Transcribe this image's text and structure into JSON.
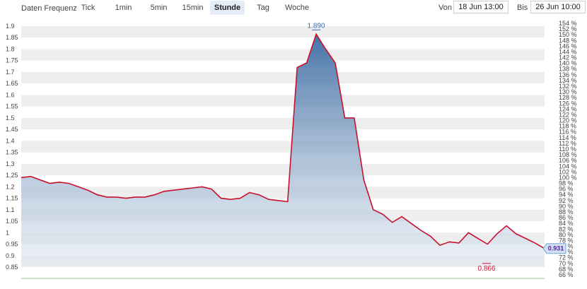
{
  "toolbar": {
    "frequency_label": "Daten Frequenz",
    "buttons": [
      {
        "label": "Tick",
        "active": false
      },
      {
        "label": "1min",
        "active": false
      },
      {
        "label": "5min",
        "active": false
      },
      {
        "label": "15min",
        "active": false
      },
      {
        "label": "Stunde",
        "active": true
      },
      {
        "label": "Tag",
        "active": false
      },
      {
        "label": "Woche",
        "active": false
      }
    ],
    "from_label": "Von",
    "from_value": "18 Jun 13:00",
    "to_label": "Bis",
    "to_value": "26 Jun 10:00"
  },
  "colors": {
    "line": "#c8102e",
    "area_top": "#3d6ca3",
    "area_bottom": "#e4ebf3",
    "band": "#eeeeee",
    "current_badge": "#cfe0f3",
    "high_label": "#3a6fb0",
    "low_label": "#c8102e"
  },
  "chart_data": {
    "type": "area",
    "y_left_ticks": [
      "1.9",
      "1.85",
      "1.8",
      "1.75",
      "1.7",
      "1.65",
      "1.6",
      "1.55",
      "1.5",
      "1.45",
      "1.4",
      "1.35",
      "1.3",
      "1.25",
      "1.2",
      "1.15",
      "1.1",
      "1.05",
      "1",
      "0.95",
      "0.9",
      "0.85"
    ],
    "y_right_ticks": [
      "154 %",
      "152 %",
      "150 %",
      "148 %",
      "146 %",
      "144 %",
      "142 %",
      "140 %",
      "138 %",
      "136 %",
      "134 %",
      "132 %",
      "130 %",
      "128 %",
      "126 %",
      "124 %",
      "122 %",
      "120 %",
      "118 %",
      "116 %",
      "114 %",
      "112 %",
      "110 %",
      "108 %",
      "106 %",
      "104 %",
      "102 %",
      "100 %",
      "98 %",
      "96 %",
      "94 %",
      "92 %",
      "90 %",
      "88 %",
      "86 %",
      "84 %",
      "82 %",
      "80 %",
      "78 %",
      "76 %",
      "74 %",
      "72 %",
      "70 %",
      "68 %",
      "66 %"
    ],
    "ylim": [
      0.85,
      1.9
    ],
    "values": [
      1.24,
      1.245,
      1.23,
      1.215,
      1.22,
      1.215,
      1.2,
      1.185,
      1.165,
      1.155,
      1.155,
      1.15,
      1.155,
      1.155,
      1.165,
      1.18,
      1.185,
      1.19,
      1.195,
      1.2,
      1.19,
      1.15,
      1.145,
      1.15,
      1.175,
      1.165,
      1.145,
      1.14,
      1.135,
      1.72,
      1.74,
      1.865,
      1.8,
      1.74,
      1.5,
      1.5,
      1.23,
      1.1,
      1.08,
      1.045,
      1.07,
      1.04,
      1.01,
      0.985,
      0.945,
      0.96,
      0.955,
      1.0,
      0.975,
      0.95,
      0.995,
      1.03,
      0.995,
      0.975,
      0.955,
      0.931
    ],
    "high_label": "1.890",
    "low_label": "0.866",
    "current_label": "0.931"
  }
}
